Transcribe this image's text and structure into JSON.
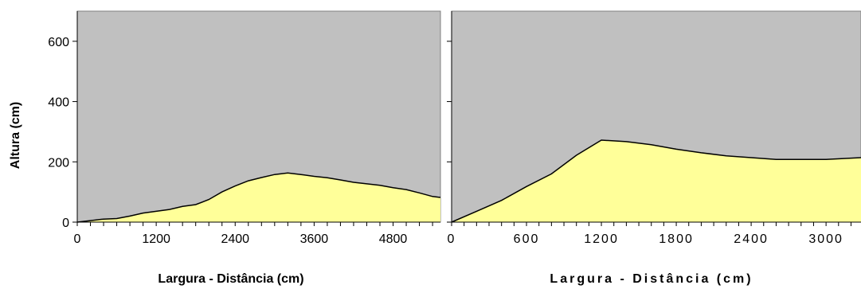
{
  "chart_data": [
    {
      "type": "area",
      "title": "",
      "xlabel": "Largura - Distância (cm)",
      "ylabel": "Altura (cm)",
      "xlim": [
        0,
        5520
      ],
      "ylim": [
        0,
        700
      ],
      "xticks": [
        0,
        1200,
        2400,
        3600,
        4800
      ],
      "xtick_labels": [
        "0",
        "1200",
        "2400",
        "3600",
        "4800"
      ],
      "yticks": [
        0,
        200,
        400,
        600
      ],
      "ytick_labels": [
        "0",
        "200",
        "400",
        "600"
      ],
      "grid": false,
      "colors": {
        "plot_bg": "#c0c0c0",
        "fill": "#ffff99",
        "line": "#000000"
      },
      "series": [
        {
          "x": [
            0,
            200,
            400,
            600,
            800,
            1000,
            1200,
            1400,
            1600,
            1800,
            2000,
            2200,
            2400,
            2600,
            2800,
            3000,
            3200,
            3400,
            3600,
            3800,
            4000,
            4200,
            4400,
            4600,
            4800,
            5000,
            5200,
            5400,
            5520
          ],
          "values": [
            0,
            5,
            10,
            12,
            20,
            30,
            36,
            42,
            52,
            58,
            75,
            100,
            120,
            137,
            148,
            158,
            163,
            158,
            152,
            147,
            140,
            132,
            127,
            122,
            114,
            108,
            97,
            85,
            82
          ]
        }
      ]
    },
    {
      "type": "area",
      "title": "",
      "xlabel": "Largura - Distância (cm)",
      "ylabel": "",
      "xlim": [
        0,
        3280
      ],
      "ylim": [
        0,
        700
      ],
      "xticks": [
        0,
        600,
        1200,
        1800,
        2400,
        3000
      ],
      "xtick_labels": [
        "0",
        "600",
        "1200",
        "1800",
        "2400",
        "3000"
      ],
      "yticks": [
        0,
        200,
        400,
        600
      ],
      "ytick_labels": [],
      "grid": false,
      "colors": {
        "plot_bg": "#c0c0c0",
        "fill": "#ffff99",
        "line": "#000000"
      },
      "series": [
        {
          "x": [
            0,
            200,
            400,
            600,
            800,
            1000,
            1200,
            1400,
            1600,
            1800,
            2000,
            2200,
            2400,
            2600,
            2800,
            3000,
            3280
          ],
          "values": [
            0,
            36,
            72,
            118,
            160,
            222,
            272,
            267,
            257,
            242,
            230,
            220,
            214,
            208,
            208,
            208,
            214
          ]
        }
      ]
    }
  ]
}
